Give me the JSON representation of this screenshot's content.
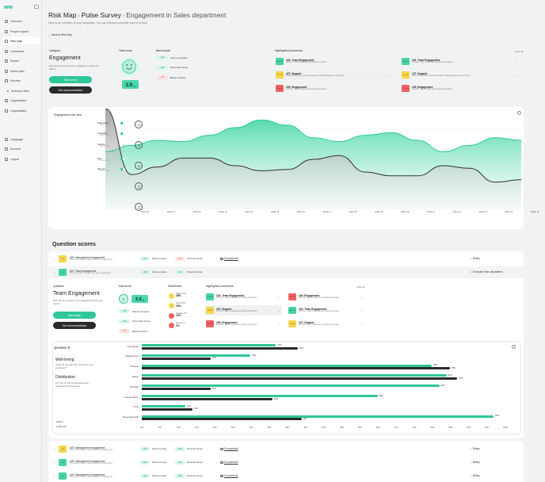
{
  "brand": {
    "logo": "ww",
    "accent": "#2ec79a",
    "dark": "#2b2b2b"
  },
  "sidebar": {
    "items": [
      {
        "label": "Overview",
        "icon": "home-icon"
      },
      {
        "label": "People impact",
        "icon": "people-icon"
      },
      {
        "label": "Risk map",
        "icon": "map-icon",
        "active": true
      },
      {
        "label": "Comments",
        "icon": "comment-icon"
      },
      {
        "label": "Report",
        "icon": "report-icon"
      },
      {
        "label": "Action plan",
        "icon": "flag-icon"
      },
      {
        "label": "Surveys",
        "icon": "survey-icon",
        "expandable": true
      },
      {
        "label": "Submenu item",
        "icon": "dot-icon",
        "sub": true
      },
      {
        "label": "Organisation",
        "icon": "org-icon"
      },
      {
        "label": "Organisation",
        "icon": "org-icon"
      }
    ],
    "bottom": [
      {
        "label": "Language",
        "icon": "globe-icon"
      },
      {
        "label": "Account",
        "icon": "user-icon"
      },
      {
        "label": "Logout",
        "icon": "logout-icon"
      }
    ]
  },
  "header": {
    "crumb1": "Risk Map",
    "crumb2": "Pulse Survey",
    "crumb3": "Engagement in Sales department",
    "sep": "›",
    "subtitle": "Here is an overview of your templates. You can edit and schedule from to to time.",
    "back": "Back to Risk Map"
  },
  "top": {
    "category_label": "Category",
    "category_title": "Engagement",
    "category_desc": "How do you assess your engagement with your team?",
    "take_action": "Take action",
    "get_rec": "Get recommendation",
    "total_score_label": "Total score",
    "score": "3.9",
    "score_max": "/5",
    "benchmark_label": "Benchmark",
    "benchmarks": [
      {
        "value": "+0.9",
        "label": "Above company",
        "tone": "g"
      },
      {
        "value": "+0.9",
        "label": "Since last survey",
        "tone": "g"
      },
      {
        "value": "-1.5",
        "label": "Below industry",
        "tone": "r"
      }
    ],
    "highlighted_label": "Highlighted comments",
    "view_all": "View all",
    "comments": [
      {
        "badge": "0 of 10",
        "tone": "g",
        "title": "#23: Team Engagement",
        "text": "Only few - team is quiet done at what your workers"
      },
      {
        "badge": "0 of 10",
        "tone": "g",
        "title": "#23: Team Engagement",
        "text": "Only few - team is quiet done at what your workers"
      },
      {
        "badge": "0 of 10",
        "tone": "y",
        "title": "#27: Support",
        "text": "Lorem ipsum dolor sit amet consectetur. Velit quis pharetra ut commodo",
        "sel": true
      },
      {
        "badge": "0 of 10",
        "tone": "y",
        "title": "#27: Support",
        "text": "Lorem ipsum dolor sit amet consectetur. Velit quis pharetra ut commodo"
      },
      {
        "badge": "0 of 10",
        "tone": "r",
        "title": "#29: Engagement",
        "text": "Only few - team is quiet done at what your workers"
      },
      {
        "badge": "0 of 10",
        "tone": "r",
        "title": "#29: Engagement",
        "text": "Only few - team is quiet done at what your workers"
      }
    ]
  },
  "overtime": {
    "title": "Engagement over time",
    "legend": [
      {
        "label": "Total score",
        "sub": "Above +0.9",
        "on": true
      },
      {
        "label": "Company",
        "sub": "Below +0.9",
        "on": true
      },
      {
        "label": "Industry",
        "sub": "Above +0.9",
        "on": false
      },
      {
        "label": "Men",
        "sub": "Above +0.9",
        "on": true
      },
      {
        "label": "Women",
        "sub": "Above +0.9",
        "on": true
      }
    ],
    "months": [
      "Week 10",
      "Week 11",
      "Week 12",
      "Week 13",
      "Week 14",
      "Week 15",
      "Week 16",
      "Week 17",
      "Week 18",
      "Week 19",
      "Week 10",
      "Week 11",
      "Week 12",
      "Week 13",
      "Week 14",
      "Week 15",
      "Week 16"
    ]
  },
  "chart_data": [
    {
      "type": "area",
      "title": "Engagement over time",
      "x": [
        "Week 10",
        "Week 11",
        "Week 12",
        "Week 13",
        "Week 14",
        "Week 15",
        "Week 16",
        "Week 17",
        "Week 18",
        "Week 19",
        "Week 10",
        "Week 11",
        "Week 12",
        "Week 13",
        "Week 14",
        "Week 15",
        "Week 16"
      ],
      "ylim": [
        1,
        5
      ],
      "series": [
        {
          "name": "Total score",
          "values": [
            3.3,
            3.55,
            3.75,
            3.7,
            3.95,
            4.25,
            4.55,
            4.35,
            3.85,
            3.7,
            3.95,
            4.05,
            3.75,
            3.3,
            3.55,
            3.85,
            3.75
          ]
        },
        {
          "name": "Company",
          "values": [
            5,
            2.4,
            2.7,
            3.05,
            3.05,
            2.75,
            2.55,
            2.6,
            3.0,
            3.15,
            2.5,
            2.35,
            2.35,
            2.75,
            2.65,
            2.1,
            2.2
          ]
        }
      ]
    },
    {
      "type": "bar",
      "title": "Well-being",
      "orientation": "horizontal",
      "categories": [
        "Our Culture",
        "Management",
        "Purpose",
        "Values",
        "Diversity",
        "Compensation",
        "Trust",
        "Personal growth"
      ],
      "xlim": [
        0,
        100
      ],
      "series": [
        {
          "name": "Men",
          "values": [
            37,
            30,
            80,
            84,
            82,
            65,
            12,
            97
          ]
        },
        {
          "name": "Women",
          "values": [
            43,
            19,
            85,
            87,
            19,
            36,
            14,
            44
          ]
        }
      ]
    }
  ],
  "question_scores": {
    "title": "Question scores",
    "rows_top": [
      {
        "badge": "3.9",
        "tone": "y",
        "title": "#23: Management engagement",
        "sub": "How would you like to asses your team engagement?",
        "b1": "+0.9",
        "b1l": "Above company",
        "b2": "-1.5",
        "b2l": "Since last survey",
        "comments": "8 comments",
        "type": "Binary"
      },
      {
        "badge": "3.9",
        "tone": "g",
        "title": "#23: Team engagement",
        "sub": "How do you like to assess your team engagement?",
        "b1": "+0.9",
        "b1l": "Above company",
        "b2": "+0.9",
        "b2l": "Since last survey",
        "comments": "",
        "type": "Excluded from calculations"
      }
    ],
    "detail": {
      "q_label": "Question",
      "title": "Team Engagement",
      "desc": "How do you assess your engagement with your team?",
      "take_action": "Take action",
      "get_rec": "Get recommendation",
      "total_label": "Total score",
      "score": "3.9",
      "score_max": "/5",
      "benchmarks": [
        {
          "value": "+0.9",
          "label": "Above company",
          "tone": "g"
        },
        {
          "value": "+0.9",
          "label": "Since last survey",
          "tone": "g"
        },
        {
          "value": "-1.5",
          "label": "Below industry",
          "tone": "r"
        }
      ],
      "dist_label": "Distribution",
      "dist": [
        {
          "label": "Positive (82)",
          "pct": "48%",
          "color": "#f7d64a"
        },
        {
          "label": "Neutral (53)",
          "pct": "39%",
          "color": "#f7d64a"
        },
        {
          "label": "Negative (12)",
          "pct": "12%",
          "color": "#f06060"
        },
        {
          "label": "Ignored (3)",
          "pct": "2%",
          "color": "#f06060"
        }
      ],
      "hl_label": "Highlighted comments",
      "view_all": "View all",
      "comments": [
        {
          "badge": "0 of 10",
          "tone": "g",
          "title": "#23: Team Engagement",
          "text": "Only few - team is quiet done at what your workers"
        },
        {
          "badge": "0 of 10",
          "tone": "r",
          "title": "#29: Engagement",
          "text": "Only few - team is quiet done at what your workers"
        },
        {
          "badge": "0 of 10",
          "tone": "y",
          "title": "#27: Support",
          "text": "Only few - team is quiet done at what your workers",
          "sel": true
        },
        {
          "badge": "0 of 10",
          "tone": "g",
          "title": "#23: Team Engagement",
          "text": "Only few - team is quiet done at what your workers"
        },
        {
          "badge": "0 of 10",
          "tone": "r",
          "title": "#29: Engagement",
          "text": "Only few - team is quiet done at what your workers"
        },
        {
          "badge": "0 of 10",
          "tone": "y",
          "title": "#27: Support",
          "text": "Only few - team is quiet done at what your workers"
        }
      ]
    },
    "q8": {
      "label": "Question 8",
      "title": "Well-being",
      "desc": "What do you like the most about our company?",
      "dist_title": "Distribution",
      "dist_desc": "277 out of 330 employees have answered this question",
      "men": "Men",
      "women": "Women",
      "xticks": [
        "0%",
        "5%",
        "10%",
        "15%",
        "20%",
        "25%",
        "30%",
        "35%",
        "40%",
        "45%",
        "50%",
        "55%",
        "60%",
        "65%",
        "70%",
        "75%",
        "80%",
        "85%",
        "90%",
        "95%",
        "100%"
      ]
    },
    "rows_bottom": [
      {
        "badge": "3.9",
        "tone": "y",
        "title": "#23: Management engagement",
        "sub": "How would you like to asses your team engagement?",
        "b1": "+0.9",
        "b1l": "Above company",
        "b2": "+0.9",
        "b2l": "Since last survey",
        "comments": "8 comments",
        "type": "Binary"
      },
      {
        "badge": "3.9",
        "tone": "g",
        "title": "#23: Management engagement",
        "sub": "How would you like to asses your team engagement?",
        "b1": "+0.9",
        "b1l": "Above company",
        "b2": "+0.9",
        "b2l": "Since last survey",
        "comments": "8 comments",
        "type": "Binary"
      },
      {
        "badge": "3.9",
        "tone": "g",
        "title": "#23: Management engagement",
        "sub": "How would you like to asses your team engagement?",
        "b1": "+0.9",
        "b1l": "Above company",
        "b2": "+0.9",
        "b2l": "Since last survey",
        "comments": "8 comments",
        "type": "Binary"
      }
    ]
  }
}
